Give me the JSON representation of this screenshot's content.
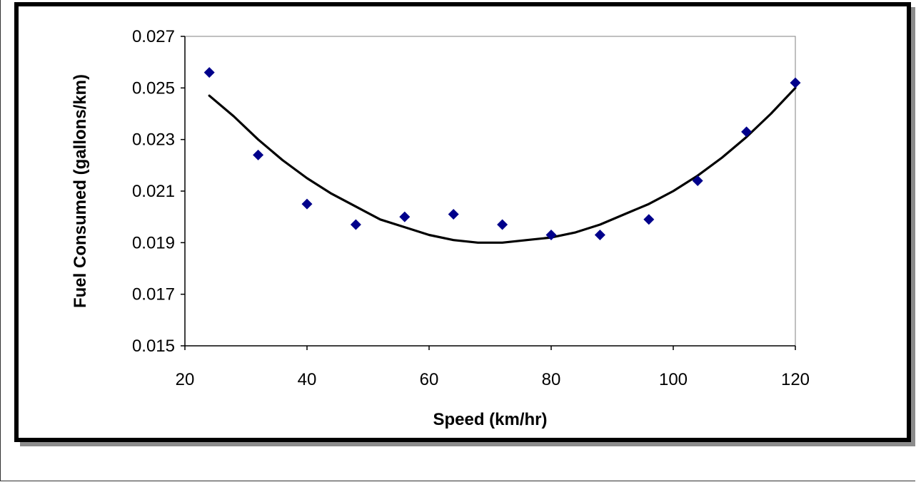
{
  "chart_data": {
    "type": "scatter",
    "title": "",
    "xlabel": "Speed (km/hr)",
    "ylabel": "Fuel Consumed (gallons/km)",
    "xlim": [
      20,
      120
    ],
    "ylim": [
      0.015,
      0.027
    ],
    "x_ticks": [
      "20",
      "40",
      "60",
      "80",
      "100",
      "120"
    ],
    "y_ticks": [
      "0.015",
      "0.017",
      "0.019",
      "0.021",
      "0.023",
      "0.025",
      "0.027"
    ],
    "grid": false,
    "legend": "none",
    "series": [
      {
        "kind": "scatter",
        "marker": "diamond",
        "color": "#00008b",
        "x": [
          24,
          32,
          40,
          48,
          56,
          64,
          72,
          80,
          88,
          96,
          104,
          112,
          120
        ],
        "y": [
          0.0256,
          0.0224,
          0.0205,
          0.0197,
          0.02,
          0.0201,
          0.0197,
          0.0193,
          0.0193,
          0.0199,
          0.0214,
          0.0233,
          0.0252
        ]
      },
      {
        "kind": "trendline",
        "color": "#000000",
        "x": [
          24,
          28,
          32,
          36,
          40,
          44,
          48,
          52,
          56,
          60,
          64,
          68,
          72,
          76,
          80,
          84,
          88,
          92,
          96,
          100,
          104,
          108,
          112,
          116,
          120
        ],
        "y": [
          0.0247,
          0.0239,
          0.023,
          0.0222,
          0.0215,
          0.0209,
          0.0204,
          0.0199,
          0.0196,
          0.0193,
          0.0191,
          0.019,
          0.019,
          0.0191,
          0.0192,
          0.0194,
          0.0197,
          0.0201,
          0.0205,
          0.021,
          0.0216,
          0.0223,
          0.0231,
          0.024,
          0.025
        ]
      }
    ]
  }
}
